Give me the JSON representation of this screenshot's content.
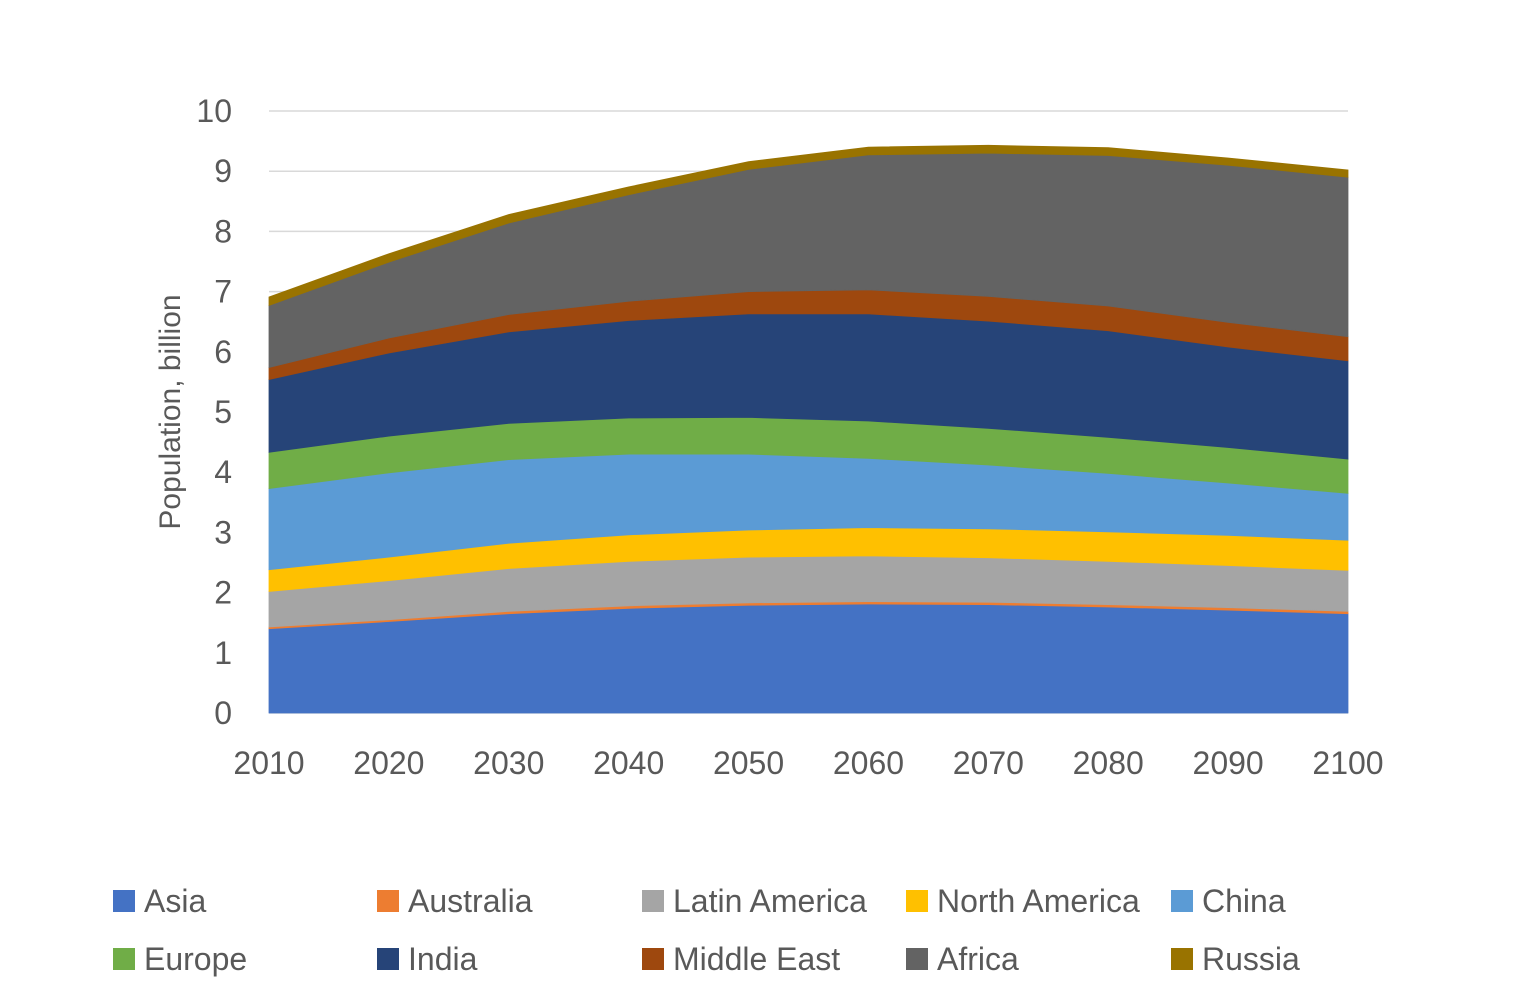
{
  "chart_data": {
    "type": "area",
    "stacked": true,
    "title": "",
    "xlabel": "",
    "ylabel": "Population, billion",
    "xlim": [
      2010,
      2100
    ],
    "ylim": [
      0,
      10
    ],
    "x_ticks": [
      "2010",
      "2020",
      "2030",
      "2040",
      "2050",
      "2060",
      "2070",
      "2080",
      "2090",
      "2100"
    ],
    "y_ticks": [
      "0",
      "1",
      "2",
      "3",
      "4",
      "5",
      "6",
      "7",
      "8",
      "9",
      "10"
    ],
    "grid": {
      "horizontal": true,
      "vertical": false
    },
    "legend_position": "bottom",
    "x": [
      2010,
      2020,
      2030,
      2040,
      2050,
      2060,
      2070,
      2080,
      2090,
      2100
    ],
    "series": [
      {
        "name": "Asia",
        "color": "#4472C4",
        "values": [
          1.4,
          1.52,
          1.65,
          1.74,
          1.79,
          1.81,
          1.8,
          1.76,
          1.71,
          1.65
        ]
      },
      {
        "name": "Australia",
        "color": "#ED7D31",
        "values": [
          0.03,
          0.03,
          0.04,
          0.04,
          0.04,
          0.04,
          0.04,
          0.04,
          0.04,
          0.04
        ]
      },
      {
        "name": "Latin America",
        "color": "#A5A5A5",
        "values": [
          0.59,
          0.65,
          0.71,
          0.74,
          0.76,
          0.76,
          0.74,
          0.72,
          0.7,
          0.68
        ]
      },
      {
        "name": "North America",
        "color": "#FFC000",
        "values": [
          0.36,
          0.39,
          0.42,
          0.44,
          0.45,
          0.47,
          0.48,
          0.49,
          0.5,
          0.5
        ]
      },
      {
        "name": "China",
        "color": "#5B9BD5",
        "values": [
          1.35,
          1.4,
          1.39,
          1.34,
          1.26,
          1.15,
          1.06,
          0.97,
          0.87,
          0.78
        ]
      },
      {
        "name": "Europe",
        "color": "#70AD47",
        "values": [
          0.6,
          0.61,
          0.6,
          0.6,
          0.61,
          0.62,
          0.61,
          0.6,
          0.59,
          0.57
        ]
      },
      {
        "name": "India",
        "color": "#264478",
        "values": [
          1.21,
          1.38,
          1.52,
          1.62,
          1.72,
          1.78,
          1.78,
          1.77,
          1.67,
          1.63
        ]
      },
      {
        "name": "Middle East",
        "color": "#9E480E",
        "values": [
          0.2,
          0.25,
          0.29,
          0.32,
          0.37,
          0.4,
          0.41,
          0.41,
          0.41,
          0.4
        ]
      },
      {
        "name": "Africa",
        "color": "#636363",
        "values": [
          1.03,
          1.26,
          1.52,
          1.77,
          2.03,
          2.24,
          2.38,
          2.5,
          2.61,
          2.65
        ]
      },
      {
        "name": "Russia",
        "color": "#997300",
        "values": [
          0.14,
          0.14,
          0.14,
          0.13,
          0.13,
          0.13,
          0.13,
          0.13,
          0.12,
          0.12
        ]
      }
    ]
  }
}
